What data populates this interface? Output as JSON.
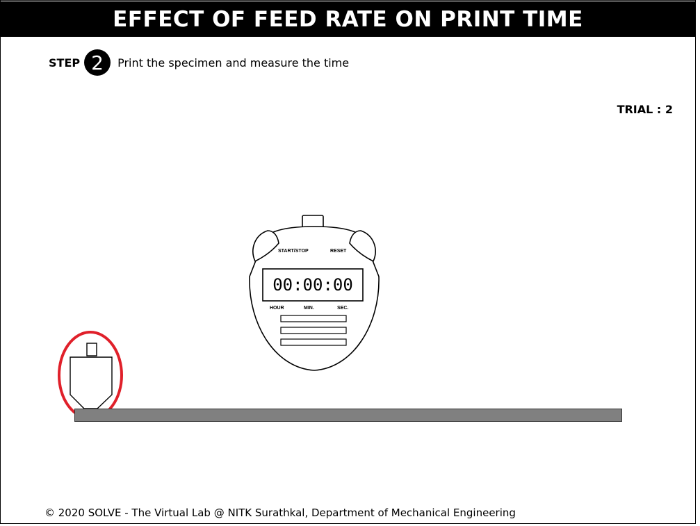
{
  "header": {
    "title": "EFFECT OF FEED RATE ON PRINT TIME"
  },
  "step": {
    "label": "STEP",
    "number": "2",
    "instruction": "Print the specimen and measure the time"
  },
  "trial": {
    "label": "TRIAL : 2"
  },
  "stopwatch": {
    "display": "00:00:00",
    "start_stop_label": "START/STOP",
    "reset_label": "RESET",
    "hour_label": "HOUR",
    "min_label": "MIN.",
    "sec_label": "SEC."
  },
  "printer": {
    "nozzle": "print-nozzle",
    "bed": "print-bed",
    "highlight_color": "#e0202a"
  },
  "footer": {
    "text": "© 2020 SOLVE - The Virtual Lab @ NITK Surathkal, Department of Mechanical Engineering"
  }
}
